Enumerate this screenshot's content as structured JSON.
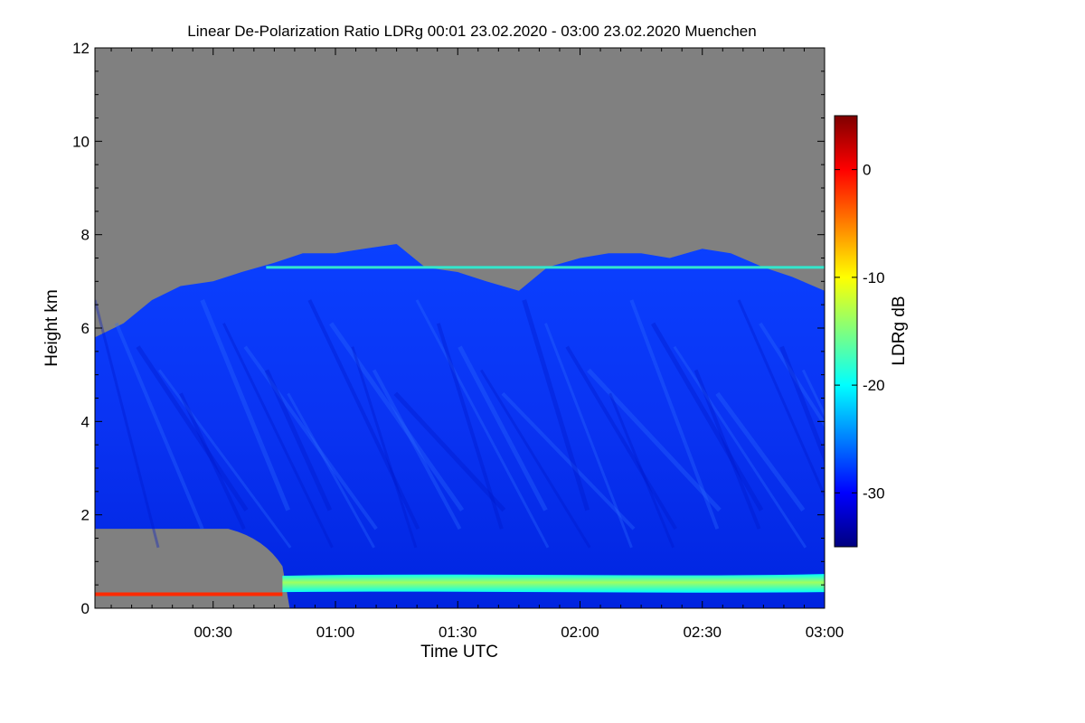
{
  "chart_data": {
    "type": "heatmap",
    "title": "Linear De-Polarization Ratio LDRg   00:01 23.02.2020 - 03:00 23.02.2020 Muenchen",
    "xlabel": "Time UTC",
    "ylabel": "Height km",
    "x_unit": "minutes after 00:00 UTC",
    "xlim": [
      1,
      180
    ],
    "ylim": [
      0,
      12
    ],
    "x_ticks": [
      30,
      60,
      90,
      120,
      150,
      180
    ],
    "x_tick_labels": [
      "00:30",
      "01:00",
      "01:30",
      "02:00",
      "02:30",
      "03:00"
    ],
    "y_ticks": [
      0,
      2,
      4,
      6,
      8,
      10,
      12
    ],
    "y_tick_labels": [
      "0",
      "2",
      "4",
      "6",
      "8",
      "10",
      "12"
    ],
    "colorbar": {
      "label": "LDRg dB",
      "range": [
        -35,
        5
      ],
      "ticks": [
        0,
        -10,
        -20,
        -30
      ],
      "tick_labels": [
        "0",
        "-10",
        "-20",
        "-30"
      ],
      "colormap": "jet",
      "colors": [
        "#00007f",
        "#0000ff",
        "#007fff",
        "#00ffff",
        "#7fff7f",
        "#ffff00",
        "#ff7f00",
        "#ff0000",
        "#7f0000"
      ]
    },
    "background_color": "#808080",
    "cloud_top_km": [
      [
        1,
        5.8
      ],
      [
        8,
        6.1
      ],
      [
        15,
        6.6
      ],
      [
        22,
        6.9
      ],
      [
        30,
        7.0
      ],
      [
        37,
        7.2
      ],
      [
        45,
        7.4
      ],
      [
        52,
        7.6
      ],
      [
        60,
        7.6
      ],
      [
        67,
        7.7
      ],
      [
        75,
        7.8
      ],
      [
        82,
        7.3
      ],
      [
        90,
        7.2
      ],
      [
        97,
        7.0
      ],
      [
        105,
        6.8
      ],
      [
        112,
        7.3
      ],
      [
        120,
        7.5
      ],
      [
        127,
        7.6
      ],
      [
        135,
        7.6
      ],
      [
        142,
        7.5
      ],
      [
        150,
        7.7
      ],
      [
        157,
        7.6
      ],
      [
        165,
        7.3
      ],
      [
        172,
        7.1
      ],
      [
        180,
        6.8
      ]
    ],
    "lower_gap": {
      "x_end": 47,
      "top_km": 1.7,
      "description": "no-signal region below cloud base before 00:47"
    },
    "features": [
      {
        "name": "high LDRg layer (orange-red)",
        "x": [
          1,
          47
        ],
        "height_km": 0.3,
        "ldr_db": 0
      },
      {
        "name": "aerosol boundary layer (cyan-yellow)",
        "x": [
          47,
          180
        ],
        "height_km": 0.5,
        "ldr_db": -18
      },
      {
        "name": "thin layer near cloud top (cyan-yellow)",
        "x": [
          43,
          180
        ],
        "height_km": 7.3,
        "ldr_db": -20
      },
      {
        "name": "ice cloud (blue)",
        "x": [
          1,
          180
        ],
        "height_km": [
          0.7,
          7.8
        ],
        "ldr_db": -28
      }
    ]
  }
}
